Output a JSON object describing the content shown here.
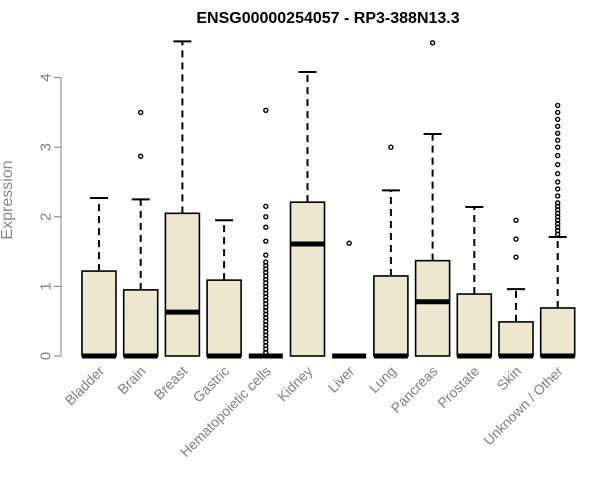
{
  "chart_data": {
    "type": "boxplot",
    "title": "ENSG00000254057 - RP3-388N13.3",
    "xlabel": "",
    "ylabel": "Expression",
    "ylim": [
      0,
      4.5
    ],
    "yticks": [
      0,
      1,
      2,
      3,
      4
    ],
    "box_fill": "#ede7cd",
    "categories": [
      "Bladder",
      "Brain",
      "Breast",
      "Gastric",
      "Hematopoietic cells",
      "Kidney",
      "Liver",
      "Lung",
      "Pancreas",
      "Prostate",
      "Skin",
      "Unknown / Other"
    ],
    "boxes": [
      {
        "min": 0,
        "q1": 0,
        "median": 0,
        "q3": 1.22,
        "max": 2.27,
        "outliers": []
      },
      {
        "min": 0,
        "q1": 0,
        "median": 0,
        "q3": 0.95,
        "max": 2.25,
        "outliers": [
          2.87,
          3.5
        ]
      },
      {
        "min": 0,
        "q1": 0,
        "median": 0.63,
        "q3": 2.05,
        "max": 4.52,
        "outliers": []
      },
      {
        "min": 0,
        "q1": 0,
        "median": 0,
        "q3": 1.09,
        "max": 1.95,
        "outliers": []
      },
      {
        "min": 0,
        "q1": 0,
        "median": 0,
        "q3": 0,
        "max": 0,
        "outliers": [
          0.05,
          0.1,
          0.15,
          0.2,
          0.25,
          0.3,
          0.35,
          0.4,
          0.45,
          0.5,
          0.55,
          0.6,
          0.65,
          0.7,
          0.75,
          0.8,
          0.85,
          0.9,
          0.95,
          1.0,
          1.05,
          1.1,
          1.15,
          1.2,
          1.25,
          1.3,
          1.35,
          1.45,
          1.65,
          1.85,
          2.0,
          2.15,
          3.53
        ]
      },
      {
        "min": 0,
        "q1": 0,
        "median": 1.61,
        "q3": 2.21,
        "max": 4.08,
        "outliers": []
      },
      {
        "min": 0,
        "q1": 0,
        "median": 0,
        "q3": 0,
        "max": 0,
        "outliers": [
          1.62
        ]
      },
      {
        "min": 0,
        "q1": 0,
        "median": 0,
        "q3": 1.15,
        "max": 2.38,
        "outliers": [
          3.0
        ]
      },
      {
        "min": 0,
        "q1": 0,
        "median": 0.78,
        "q3": 1.37,
        "max": 3.19,
        "outliers": [
          4.5
        ]
      },
      {
        "min": 0,
        "q1": 0,
        "median": 0,
        "q3": 0.89,
        "max": 2.14,
        "outliers": []
      },
      {
        "min": 0,
        "q1": 0,
        "median": 0,
        "q3": 0.49,
        "max": 0.96,
        "outliers": [
          1.42,
          1.68,
          1.95
        ]
      },
      {
        "min": 0,
        "q1": 0,
        "median": 0,
        "q3": 0.69,
        "max": 1.71,
        "outliers": [
          1.75,
          1.8,
          1.85,
          1.9,
          1.95,
          2.0,
          2.05,
          2.1,
          2.15,
          2.2,
          2.3,
          2.4,
          2.5,
          2.62,
          2.75,
          2.88,
          3.0,
          3.1,
          3.2,
          3.3,
          3.4,
          3.5,
          3.6
        ]
      }
    ]
  }
}
